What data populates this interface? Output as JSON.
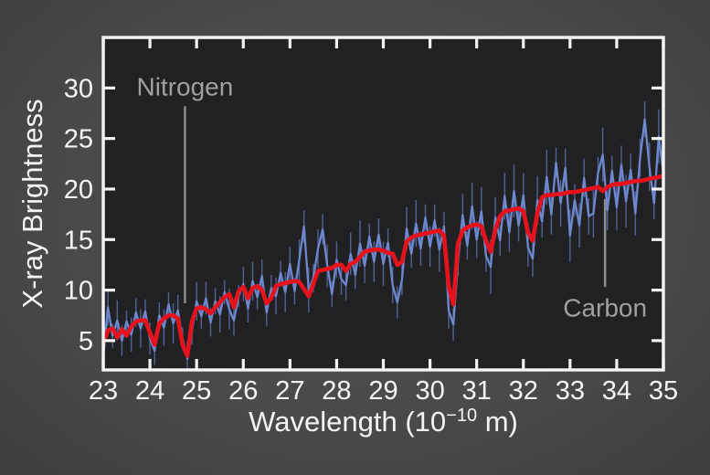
{
  "figure": {
    "background_color": "#4a4a4a",
    "plot_background_color": "#212124",
    "frame_color": "#f4f4f4",
    "tick_label_color": "#f4f4f4",
    "annotation_text_color": "#a0a0a0",
    "annotation_line_color": "#8c8c8c",
    "observed_color": "#6d88ce",
    "errorbar_color": "#54669c",
    "model_color": "#e6131d"
  },
  "chart_data": {
    "type": "line",
    "title": "",
    "xlabel": "Wavelength (10^-10 m)",
    "xlabel_parts": {
      "prefix": "Wavelength (10",
      "superscript": "−10",
      "suffix": " m)"
    },
    "ylabel": "X-ray Brightness",
    "xlim": [
      23,
      35
    ],
    "ylim": [
      2.1,
      35.0
    ],
    "x_ticks": [
      23,
      24,
      25,
      26,
      27,
      28,
      29,
      30,
      31,
      32,
      33,
      34,
      35
    ],
    "y_ticks": [
      5,
      10,
      15,
      20,
      25,
      30
    ],
    "grid": false,
    "legend": "none",
    "x": [
      23.0,
      23.1,
      23.2,
      23.3,
      23.4,
      23.5,
      23.6,
      23.7,
      23.8,
      23.9,
      24.0,
      24.1,
      24.2,
      24.3,
      24.4,
      24.5,
      24.6,
      24.7,
      24.8,
      24.9,
      25.0,
      25.1,
      25.2,
      25.3,
      25.4,
      25.5,
      25.6,
      25.7,
      25.8,
      25.9,
      26.0,
      26.1,
      26.2,
      26.3,
      26.4,
      26.5,
      26.6,
      26.7,
      26.8,
      26.9,
      27.0,
      27.1,
      27.2,
      27.3,
      27.4,
      27.5,
      27.6,
      27.7,
      27.8,
      27.9,
      28.0,
      28.1,
      28.2,
      28.3,
      28.4,
      28.5,
      28.6,
      28.7,
      28.8,
      28.9,
      29.0,
      29.1,
      29.2,
      29.3,
      29.4,
      29.5,
      29.6,
      29.7,
      29.8,
      29.9,
      30.0,
      30.1,
      30.2,
      30.3,
      30.4,
      30.5,
      30.6,
      30.7,
      30.8,
      30.9,
      31.0,
      31.1,
      31.2,
      31.3,
      31.4,
      31.5,
      31.6,
      31.7,
      31.8,
      31.9,
      32.0,
      32.1,
      32.2,
      32.3,
      32.4,
      32.5,
      32.6,
      32.7,
      32.8,
      32.9,
      33.0,
      33.1,
      33.2,
      33.3,
      33.4,
      33.5,
      33.6,
      33.7,
      33.8,
      33.9,
      34.0,
      34.1,
      34.2,
      34.3,
      34.4,
      34.5,
      34.6,
      34.7,
      34.8,
      34.9,
      35.0
    ],
    "series": [
      {
        "name": "observed spectrum",
        "style": "noisy line with error bars",
        "color": "#6d88ce",
        "y": [
          3.3,
          8.3,
          5.5,
          7.0,
          5.0,
          6.9,
          5.6,
          7.8,
          6.2,
          7.9,
          5.2,
          4.0,
          7.5,
          6.3,
          8.6,
          6.7,
          8.0,
          5.2,
          3.2,
          6.0,
          8.9,
          7.4,
          9.2,
          6.8,
          8.9,
          7.6,
          9.8,
          8.1,
          7.0,
          9.4,
          10.6,
          8.2,
          10.9,
          9.3,
          11.4,
          7.8,
          10.2,
          9.4,
          11.7,
          9.8,
          12.6,
          9.9,
          13.0,
          16.3,
          10.0,
          11.2,
          14.1,
          16.0,
          12.4,
          9.6,
          13.0,
          11.1,
          10.5,
          13.6,
          11.5,
          14.6,
          12.4,
          15.3,
          12.8,
          15.5,
          12.6,
          14.7,
          10.5,
          8.8,
          11.0,
          16.1,
          13.6,
          16.6,
          14.1,
          17.2,
          14.3,
          16.9,
          14.0,
          16.3,
          8.0,
          6.6,
          12.9,
          17.4,
          14.4,
          18.3,
          15.0,
          17.8,
          13.4,
          12.3,
          17.2,
          14.9,
          19.3,
          15.7,
          19.8,
          16.4,
          19.4,
          14.2,
          13.1,
          18.9,
          16.8,
          21.2,
          17.5,
          22.6,
          18.6,
          22.1,
          15.4,
          18.9,
          16.4,
          21.1,
          17.3,
          17.6,
          21.6,
          23.4,
          17.9,
          21.8,
          18.2,
          22.4,
          18.8,
          21.9,
          17.6,
          23.1,
          26.9,
          22.2,
          18.6,
          25.2,
          21.5
        ],
        "yerr": [
          1.3,
          1.8,
          1.2,
          2.0,
          1.5,
          1.1,
          1.7,
          1.4,
          1.9,
          1.2,
          1.6,
          1.4,
          1.3,
          1.8,
          1.2,
          2.0,
          1.5,
          1.1,
          1.7,
          1.4,
          1.9,
          1.2,
          1.6,
          1.4,
          1.3,
          1.8,
          1.2,
          2.0,
          1.5,
          1.1,
          1.7,
          1.4,
          1.9,
          1.2,
          1.6,
          1.4,
          1.3,
          1.8,
          1.2,
          2.0,
          1.7,
          1.3,
          2.0,
          1.6,
          2.2,
          1.4,
          1.9,
          1.5,
          2.1,
          1.3,
          1.8,
          1.6,
          1.5,
          2.1,
          1.4,
          2.3,
          1.7,
          1.3,
          2.0,
          1.6,
          2.2,
          1.4,
          1.8,
          1.6,
          1.5,
          2.1,
          1.4,
          2.3,
          1.7,
          1.3,
          2.0,
          1.6,
          2.2,
          1.4,
          1.8,
          1.6,
          1.5,
          2.1,
          1.4,
          2.3,
          1.8,
          2.4,
          1.6,
          2.7,
          2.0,
          1.5,
          2.3,
          1.9,
          2.6,
          1.6,
          2.2,
          1.9,
          1.8,
          2.4,
          1.6,
          2.7,
          2.0,
          1.5,
          2.3,
          1.9,
          2.6,
          1.6,
          2.2,
          1.9,
          1.8,
          2.4,
          1.6,
          2.7,
          2.0,
          1.5,
          2.3,
          1.9,
          2.6,
          1.6,
          2.2,
          1.9,
          1.8,
          2.4,
          1.6,
          2.7,
          2.0
        ]
      },
      {
        "name": "model spectrum",
        "style": "smooth thick line with absorption dips",
        "color": "#e6131d",
        "y": [
          4.8,
          6.0,
          6.2,
          5.3,
          6.1,
          5.5,
          6.4,
          6.9,
          7.0,
          7.0,
          5.8,
          4.6,
          6.7,
          7.2,
          7.5,
          7.5,
          7.2,
          4.6,
          3.5,
          6.9,
          8.2,
          8.3,
          8.1,
          7.7,
          8.3,
          8.8,
          9.3,
          9.6,
          8.3,
          9.9,
          10.3,
          9.2,
          10.2,
          10.4,
          10.0,
          8.7,
          9.2,
          10.4,
          10.6,
          10.7,
          10.8,
          10.9,
          10.8,
          10.1,
          9.4,
          10.6,
          11.9,
          12.0,
          12.1,
          12.2,
          12.5,
          12.5,
          11.9,
          12.6,
          12.8,
          13.3,
          13.8,
          13.9,
          14.0,
          14.0,
          13.9,
          13.7,
          13.6,
          12.5,
          12.8,
          14.8,
          15.2,
          15.4,
          15.5,
          15.6,
          15.7,
          15.8,
          15.9,
          15.4,
          10.4,
          8.6,
          14.6,
          15.9,
          16.2,
          16.4,
          16.5,
          16.3,
          14.9,
          13.8,
          16.0,
          17.3,
          17.8,
          17.9,
          18.0,
          18.1,
          17.8,
          15.7,
          14.9,
          17.6,
          19.2,
          19.4,
          19.4,
          19.5,
          19.5,
          19.6,
          19.7,
          19.7,
          19.8,
          19.9,
          20.0,
          20.1,
          20.2,
          19.8,
          20.2,
          20.4,
          20.5,
          20.5,
          20.6,
          20.7,
          20.8,
          20.8,
          20.9,
          21.0,
          21.1,
          21.2,
          21.3
        ]
      }
    ],
    "annotations": [
      {
        "label": "Nitrogen",
        "x": 24.75,
        "label_v": 30.1,
        "line_top_v": 28.2,
        "line_bottom_v": 8.7,
        "label_position": "above"
      },
      {
        "label": "Carbon",
        "x": 33.75,
        "label_v": 8.25,
        "line_top_v": 19.0,
        "line_bottom_v": 10.3,
        "label_position": "below"
      }
    ]
  }
}
